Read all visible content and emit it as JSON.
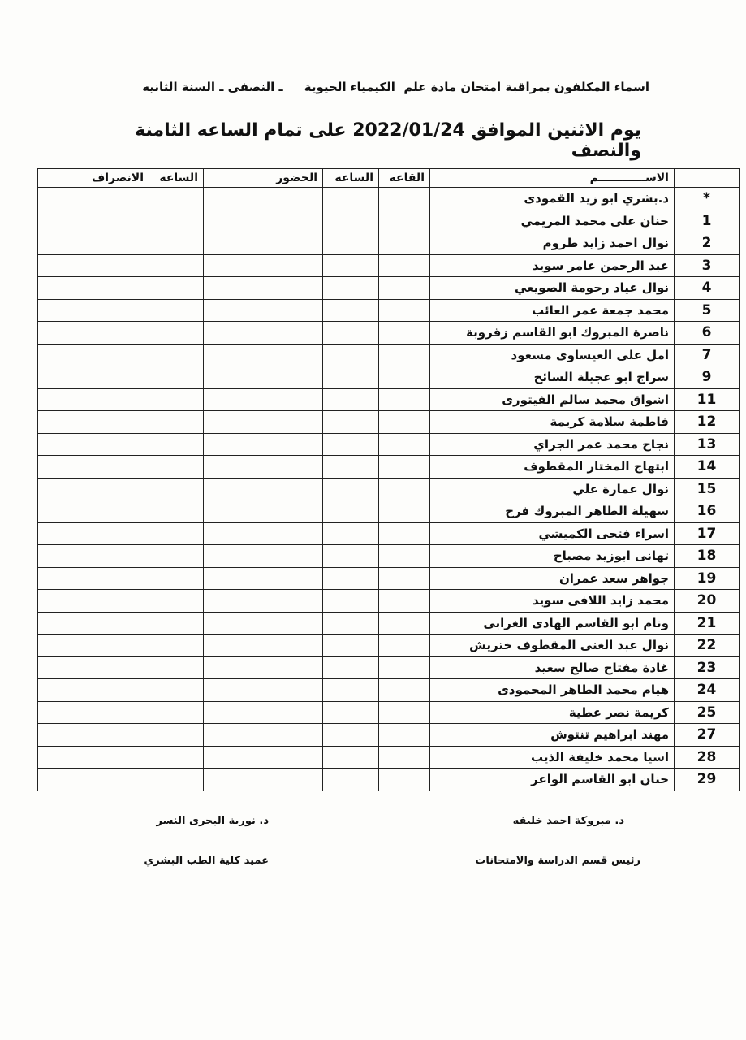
{
  "header": {
    "line1": "اسماء المكلفون بمراقبة امتحان مادة علم  الكيمياء الحيوية     ـ النصفى ـ السنة الثانيه",
    "line2": "يوم الاثنين الموافق 2022/01/24 على تمام الساعه الثامنة والنصف"
  },
  "table": {
    "columns": {
      "departure": "الانصراف",
      "time2": "الساعه",
      "attendance": "الحضور",
      "time1": "الساعه",
      "hall": "القاعة",
      "name": "الاســــــــــــم",
      "number": ""
    },
    "rows": [
      {
        "num": "*",
        "name": "د.بشري ابو زيد القمودى"
      },
      {
        "num": "1",
        "name": "حنان على محمد المريمي"
      },
      {
        "num": "2",
        "name": "نوال احمد زايد طروم"
      },
      {
        "num": "3",
        "name": "عبد الرحمن عامر سويد"
      },
      {
        "num": "4",
        "name": "نوال عياد رحومة الصويعي"
      },
      {
        "num": "5",
        "name": "محمد جمعة عمر العائب"
      },
      {
        "num": "6",
        "name": "ناصرة المبروك ابو القاسم زقروبة"
      },
      {
        "num": "7",
        "name": "امل على العيساوى مسعود"
      },
      {
        "num": "9",
        "name": "سراج ابو عجيلة السائح"
      },
      {
        "num": "11",
        "name": "اشواق محمد سالم الفيتورى"
      },
      {
        "num": "12",
        "name": "فاطمة سلامة كريمة"
      },
      {
        "num": "13",
        "name": "نجاح محمد عمر الجراي"
      },
      {
        "num": "14",
        "name": "ابتهاج المختار المقطوف"
      },
      {
        "num": "15",
        "name": "نوال عمارة علي"
      },
      {
        "num": "16",
        "name": "سهيلة الطاهر المبروك فرج"
      },
      {
        "num": "17",
        "name": "اسراء فتحى الكميشي"
      },
      {
        "num": "18",
        "name": "تهانى ابوزيد مصباح"
      },
      {
        "num": "19",
        "name": "جواهر سعد عمران"
      },
      {
        "num": "20",
        "name": "محمد زايد اللافى سويد"
      },
      {
        "num": "21",
        "name": "ونام ابو القاسم الهادى الغرابى"
      },
      {
        "num": "22",
        "name": "نوال عبد الغنى المقطوف ختريش"
      },
      {
        "num": "23",
        "name": "غادة مفتاح صالح سعيد"
      },
      {
        "num": "24",
        "name": "هيام محمد الطاهر المحمودى"
      },
      {
        "num": "25",
        "name": "كريمة نصر عطية"
      },
      {
        "num": "27",
        "name": "مهند ابراهيم تنتوش"
      },
      {
        "num": "28",
        "name": "اسيا محمد خليفة الذيب"
      },
      {
        "num": "29",
        "name": "حنان ابو القاسم الواعر"
      }
    ]
  },
  "signatures": {
    "right_name": "د. مبروكة احمد خليفه",
    "right_title": "رئيس قسم الدراسة والامتحانات",
    "left_name": "د. نورية البحرى النسر",
    "left_title": "عميد كلية الطب البشري"
  }
}
